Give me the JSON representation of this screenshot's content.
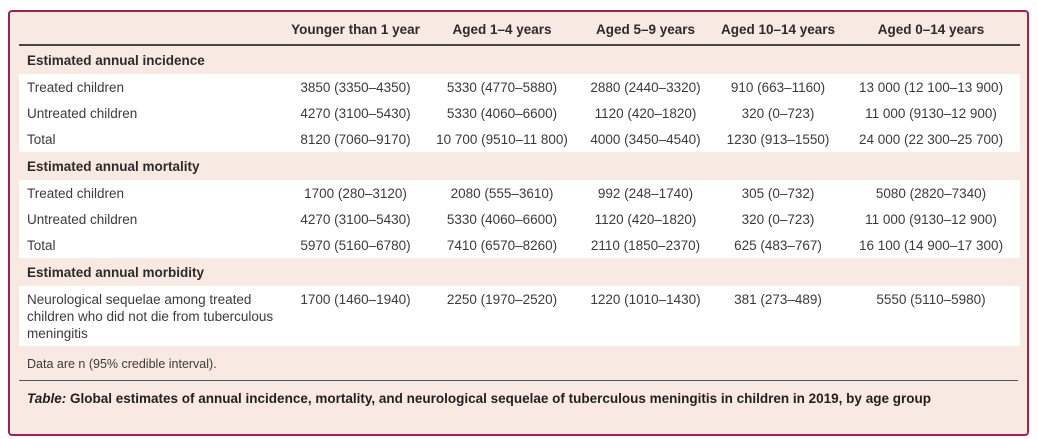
{
  "colors": {
    "frame_border": "#a52050",
    "page_background": "#f8e9e3",
    "row_background": "#ffffff",
    "header_rule": "#454545",
    "text": "#3b3b3b"
  },
  "table": {
    "columns": [
      "",
      "Younger than 1 year",
      "Aged 1–4 years",
      "Aged 5–9 years",
      "Aged 10–14 years",
      "Aged 0–14 years"
    ],
    "sections": [
      {
        "title": "Estimated annual incidence",
        "rows": [
          {
            "label": "Treated children",
            "values": [
              "3850 (3350–4350)",
              "5330 (4770–5880)",
              "2880 (2440–3320)",
              "910 (663–1160)",
              "13 000 (12 100–13 900)"
            ]
          },
          {
            "label": "Untreated children",
            "values": [
              "4270 (3100–5430)",
              "5330 (4060–6600)",
              "1120 (420–1820)",
              "320 (0–723)",
              "11 000 (9130–12 900)"
            ]
          },
          {
            "label": "Total",
            "values": [
              "8120 (7060–9170)",
              "10 700 (9510–11 800)",
              "4000 (3450–4540)",
              "1230 (913–1550)",
              "24 000 (22 300–25 700)"
            ]
          }
        ]
      },
      {
        "title": "Estimated annual mortality",
        "rows": [
          {
            "label": "Treated children",
            "values": [
              "1700 (280–3120)",
              "2080 (555–3610)",
              "992 (248–1740)",
              "305 (0–732)",
              "5080 (2820–7340)"
            ]
          },
          {
            "label": "Untreated children",
            "values": [
              "4270 (3100–5430)",
              "5330 (4060–6600)",
              "1120 (420–1820)",
              "320 (0–723)",
              "11 000 (9130–12 900)"
            ]
          },
          {
            "label": "Total",
            "values": [
              "5970 (5160–6780)",
              "7410 (6570–8260)",
              "2110 (1850–2370)",
              "625 (483–767)",
              "16 100 (14 900–17 300)"
            ]
          }
        ]
      },
      {
        "title": "Estimated annual morbidity",
        "rows": [
          {
            "label": "Neurological sequelae among treated children who did not die from tuberculous meningitis",
            "values": [
              "1700 (1460–1940)",
              "2250 (1970–2520)",
              "1220 (1010–1430)",
              "381 (273–489)",
              "5550 (5110–5980)"
            ]
          }
        ]
      }
    ],
    "footnote": "Data are n (95% credible interval).",
    "caption_label": "Table:",
    "caption_text": " Global estimates of annual incidence, mortality, and neurological sequelae of tuberculous meningitis in children in 2019, by age group"
  }
}
